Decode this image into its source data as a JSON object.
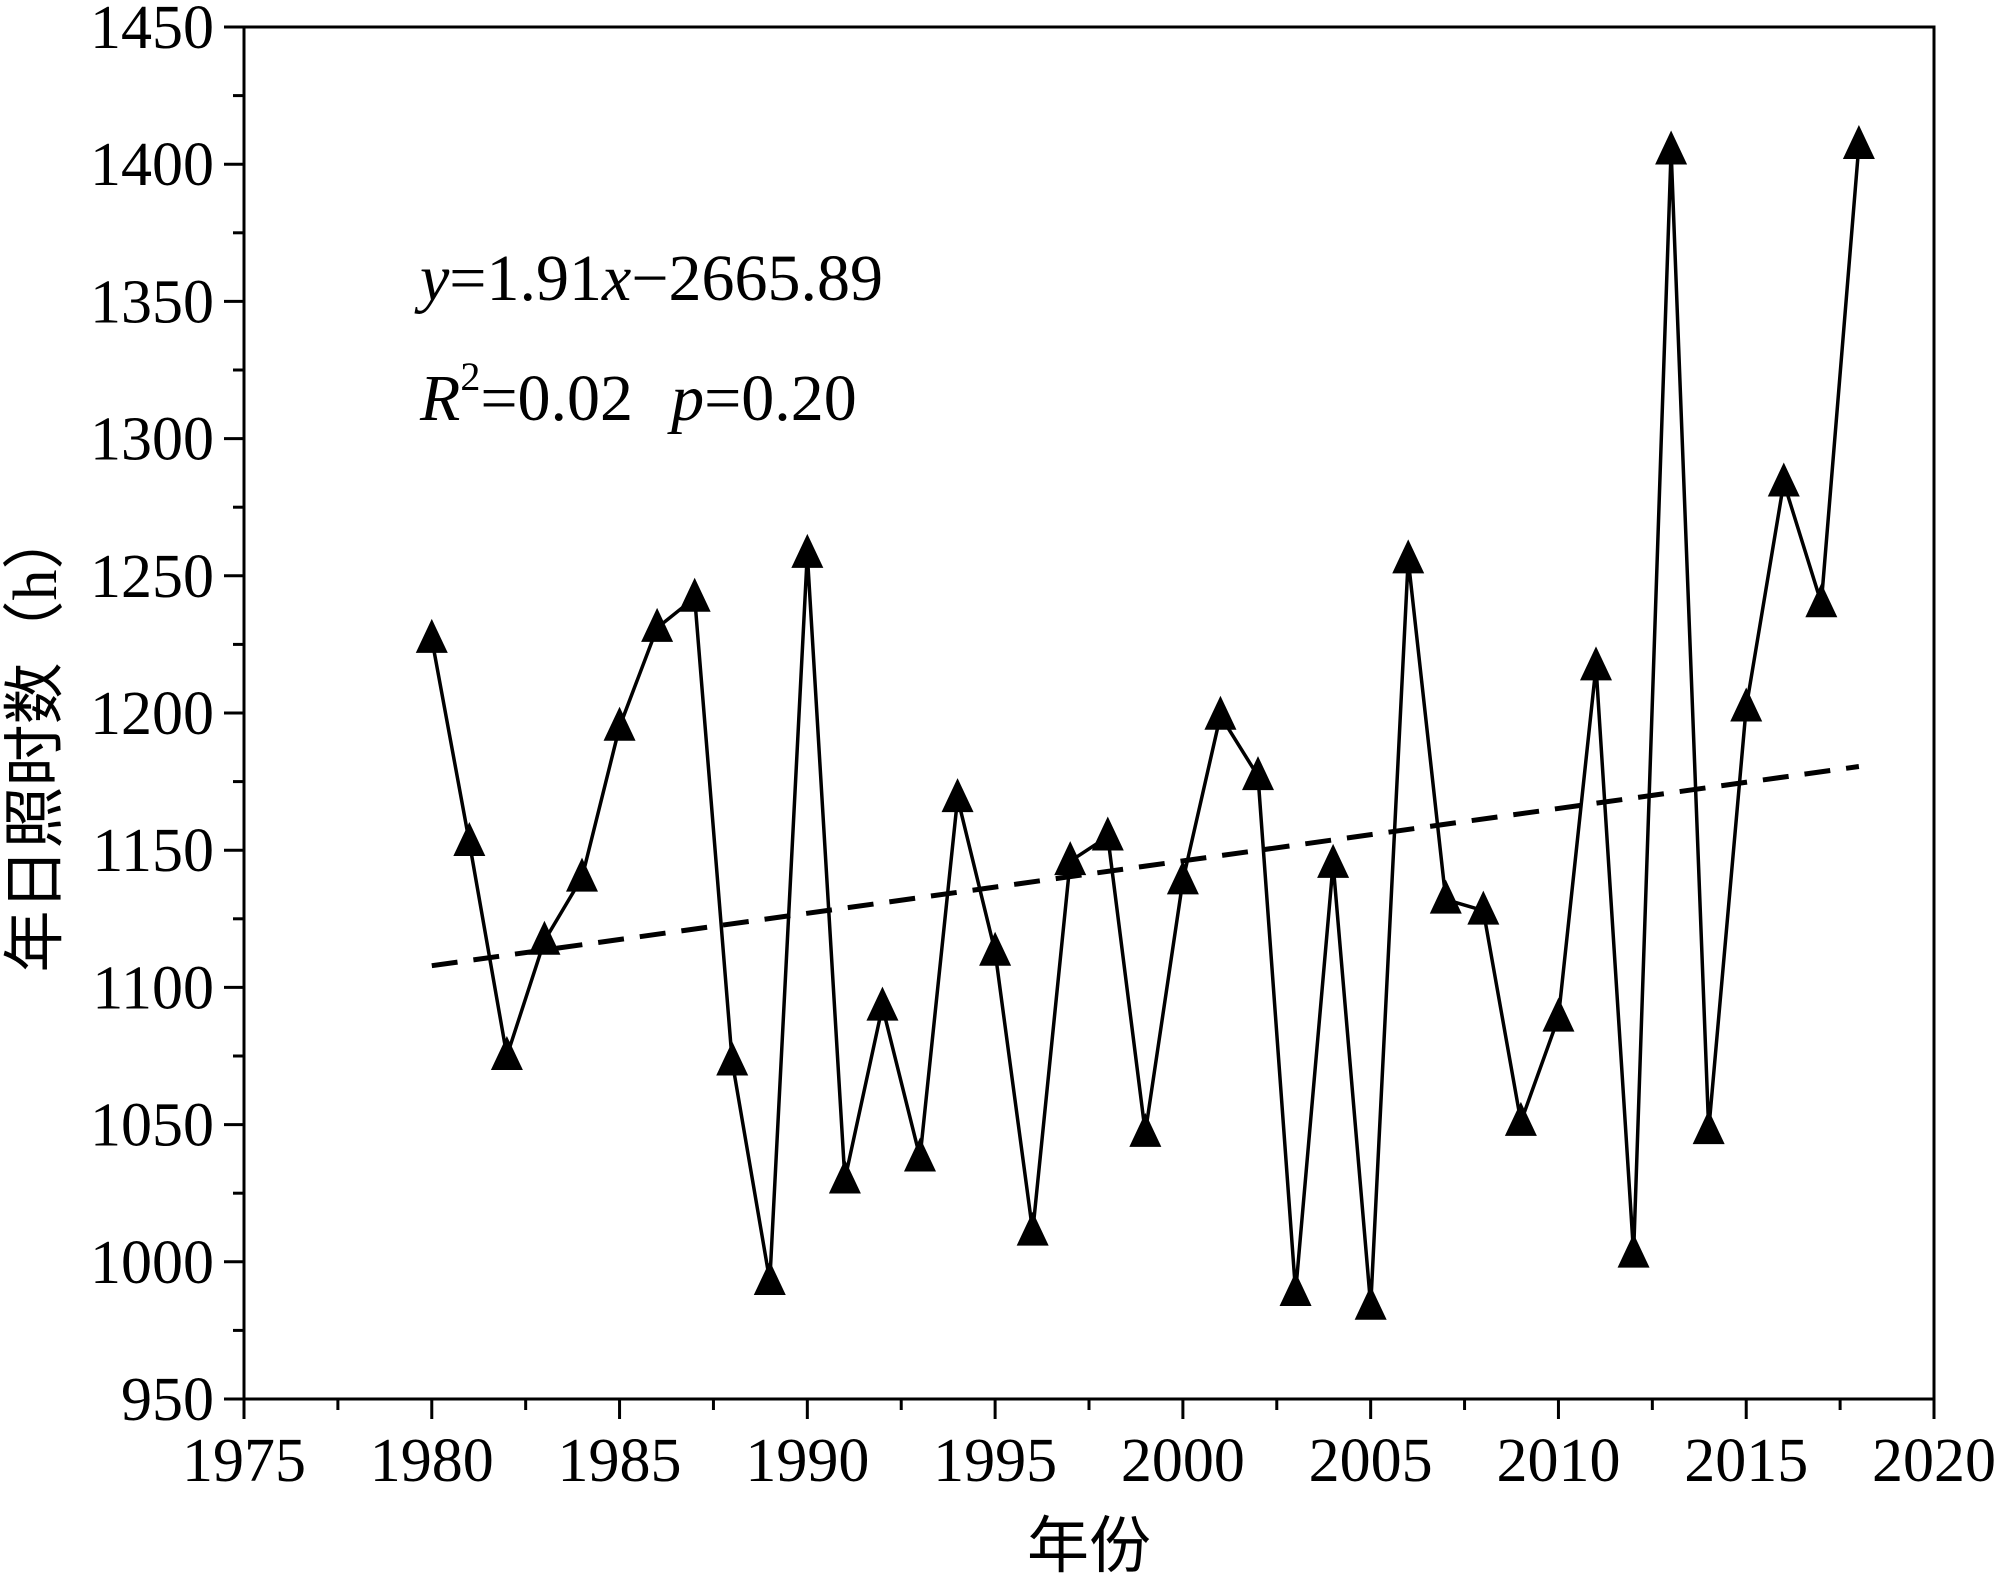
{
  "chart_data": {
    "type": "line",
    "xlabel": "年份",
    "ylabel": "年日照时数（h）",
    "xlim": [
      1975,
      2020
    ],
    "ylim": [
      950,
      1450
    ],
    "xticks": [
      "1975",
      "1980",
      "1985",
      "1990",
      "1995",
      "2000",
      "2005",
      "2010",
      "2015",
      "2020"
    ],
    "yticks": [
      "950",
      "1000",
      "1050",
      "1100",
      "1150",
      "1200",
      "1250",
      "1300",
      "1350",
      "1400",
      "1450"
    ],
    "grid": false,
    "legend": "none",
    "series": [
      {
        "marker": "filled-triangle",
        "line_style": "solid",
        "color": "#000000",
        "x": [
          1980,
          1981,
          1982,
          1983,
          1984,
          1985,
          1986,
          1987,
          1988,
          1989,
          1990,
          1991,
          1992,
          1993,
          1994,
          1995,
          1996,
          1997,
          1998,
          1999,
          2000,
          2001,
          2002,
          2003,
          2004,
          2005,
          2006,
          2007,
          2008,
          2009,
          2010,
          2011,
          2012,
          2013,
          2014,
          2015,
          2016,
          2017,
          2018
        ],
        "y": [
          1227,
          1153,
          1075,
          1117,
          1140,
          1195,
          1231,
          1242,
          1073,
          993,
          1258,
          1030,
          1093,
          1038,
          1169,
          1113,
          1011,
          1146,
          1155,
          1047,
          1139,
          1199,
          1177,
          989,
          1145,
          984,
          1256,
          1132,
          1128,
          1051,
          1089,
          1217,
          1003,
          1405,
          1048,
          1202,
          1284,
          1240,
          1407
        ]
      },
      {
        "role": "trendline",
        "line_style": "dashed",
        "color": "#000000",
        "x": [
          1980,
          2018
        ],
        "y": [
          1107.91,
          1180.49
        ]
      }
    ],
    "annotations": {
      "equation_y": "y",
      "equation_rhs": "=1.91",
      "equation_x": "x",
      "equation_tail": "−2665.89",
      "r_symbol": "R",
      "r_sup": "2",
      "r_value": "=0.02",
      "p_symbol": "p",
      "p_value": "=0.20"
    }
  }
}
